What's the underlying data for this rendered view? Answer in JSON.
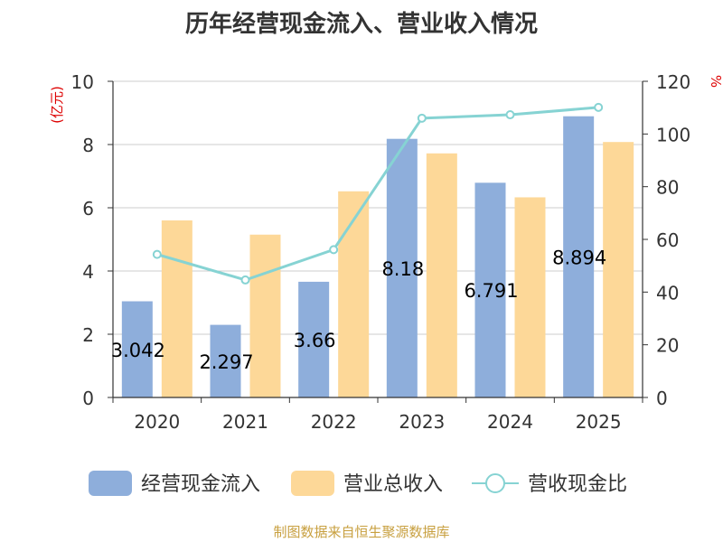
{
  "title": "历年经营现金流入、营业收入情况",
  "source": "制图数据来自恒生聚源数据库",
  "chart_data": {
    "type": "bar",
    "categories": [
      "2020",
      "2021",
      "2022",
      "2023",
      "2024",
      "2025"
    ],
    "y_left": {
      "label": "(亿元)",
      "range": [
        0,
        10
      ],
      "ticks": [
        0,
        2,
        4,
        6,
        8,
        10
      ]
    },
    "y_right": {
      "label": "%",
      "range": [
        0,
        120
      ],
      "ticks": [
        0,
        20,
        40,
        60,
        80,
        100,
        120
      ]
    },
    "grid": true,
    "legend_position": "bottom",
    "series": [
      {
        "name": "经营现金流入",
        "type": "bar",
        "axis": "left",
        "color": "#8eaedb",
        "values": [
          3.042,
          2.297,
          3.66,
          8.18,
          6.791,
          8.894
        ],
        "data_labels": [
          "3.042",
          "2.297",
          "3.66",
          "8.18",
          "6.791",
          "8.894"
        ]
      },
      {
        "name": "营业总收入",
        "type": "bar",
        "axis": "left",
        "color": "#fdd898",
        "values": [
          5.6,
          5.15,
          6.52,
          7.72,
          6.33,
          8.08
        ]
      },
      {
        "name": "营收现金比",
        "type": "line",
        "axis": "right",
        "color": "#86d3d3",
        "values": [
          54.3,
          44.6,
          56.1,
          106.0,
          107.3,
          110.1
        ]
      }
    ]
  }
}
